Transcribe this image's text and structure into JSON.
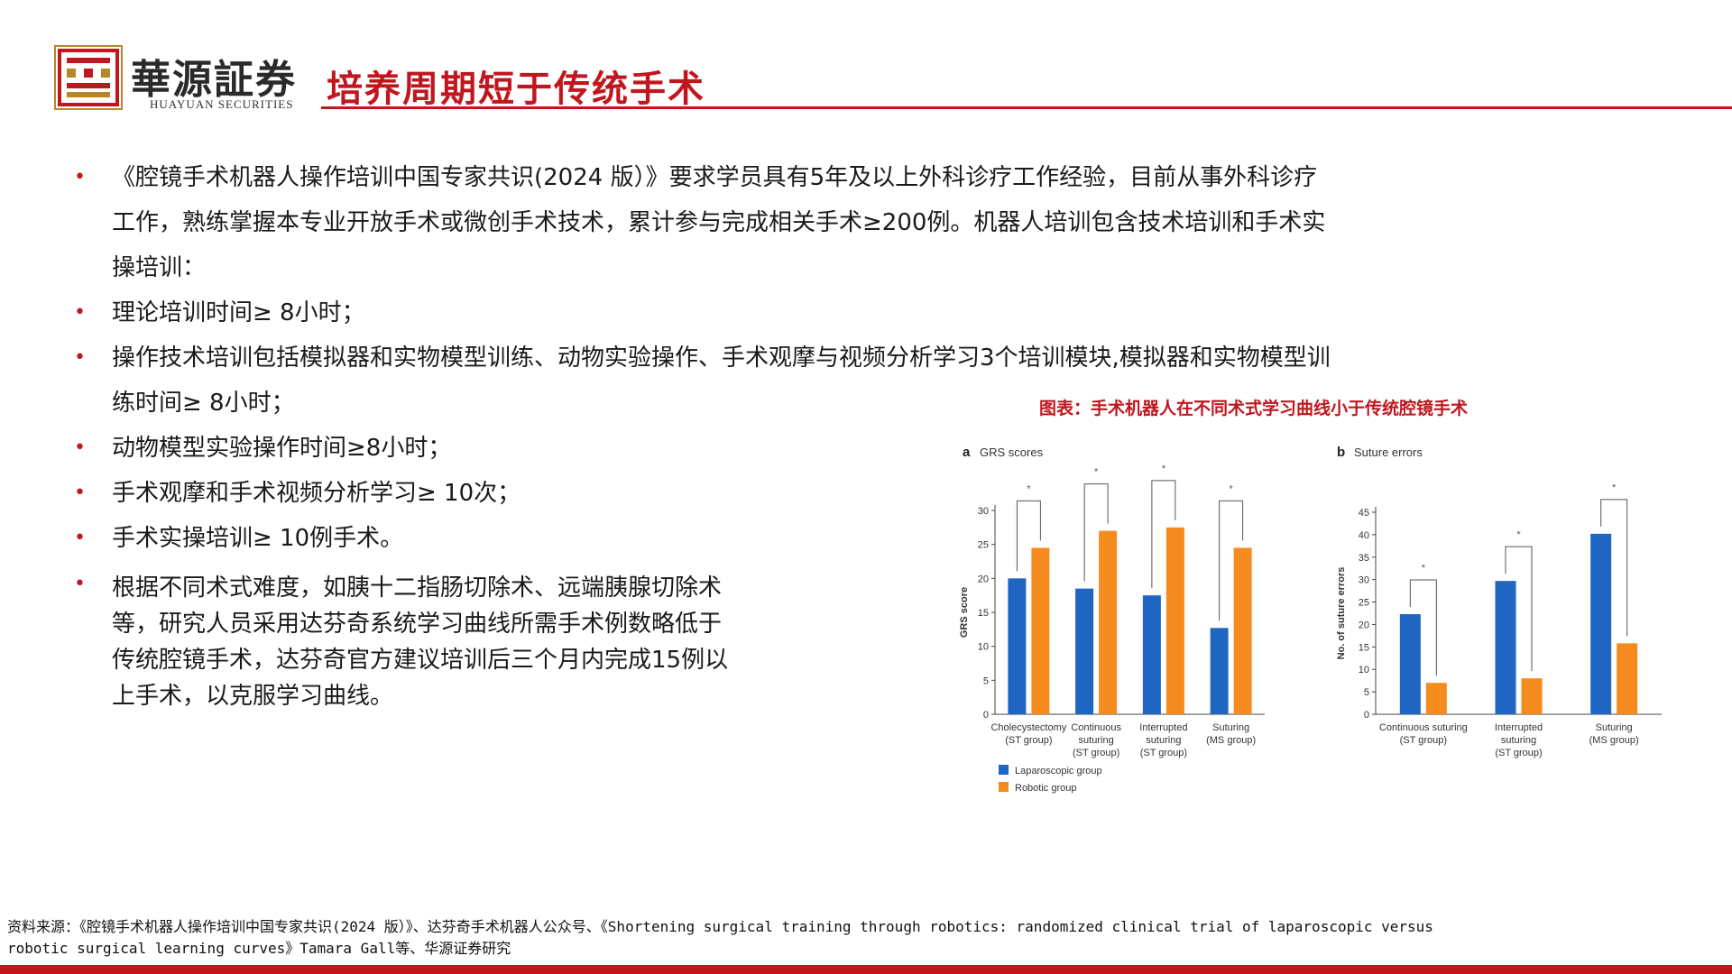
{
  "header": {
    "brand_cn": "華源証券",
    "brand_en": "HUAYUAN SECURITIES",
    "title": "培养周期短于传统手术"
  },
  "bullets": [
    {
      "line1": "《腔镜手术机器人操作培训中国专家共识(2024 版）》要求学员具有5年及以上外科诊疗工作经验，目前从事外科诊疗",
      "line2": "工作，熟练掌握本专业开放手术或微创手术技术，累计参与完成相关手术≥200例。机器人培训包含技术培训和手术实",
      "line3": "操培训："
    },
    {
      "line1": "理论培训时间≥ 8小时；"
    },
    {
      "line1": "操作技术培训包括模拟器和实物模型训练、动物实验操作、手术观摩与视频分析学习3个培训模块,模拟器和实物模型训",
      "line2": "练时间≥ 8小时；"
    },
    {
      "line1": "动物模型实验操作时间≥8小时；"
    },
    {
      "line1": "手术观摩和手术视频分析学习≥ 10次；"
    },
    {
      "line1": "手术实操培训≥ 10例手术。"
    },
    {
      "line1": "根据不同术式难度，如胰十二指肠切除术、远端胰腺切除术",
      "line2": "等，研究人员采用达芬奇系统学习曲线所需手术例数略低于",
      "line3": "传统腔镜手术，达芬奇官方建议培训后三个月内完成15例以",
      "line4": "上手术，以克服学习曲线。"
    }
  ],
  "figure_title": "图表：手术机器人在不同术式学习曲线小于传统腔镜手术",
  "source": {
    "line1": "资料来源：《腔镜手术机器人操作培训中国专家共识(2024 版）》、达芬奇手术机器人公众号、《Shortening surgical training through robotics: randomized clinical trial of laparoscopic versus",
    "line2": "robotic surgical learning curves》Tamara Gall等、华源证券研究"
  },
  "colors": {
    "accent": "#c0161e",
    "laparoscopic": "#1f66c2",
    "robotic": "#f58a1f"
  },
  "chart_data": [
    {
      "type": "bar",
      "panel": "a",
      "title": "GRS scores",
      "ylabel": "GRS score",
      "ylim": [
        0,
        30
      ],
      "yticks": [
        0,
        5,
        10,
        15,
        20,
        25,
        30
      ],
      "categories": [
        [
          "Cholecystectomy",
          "(ST group)"
        ],
        [
          "Continuous",
          "suturing",
          "(ST group)"
        ],
        [
          "Interrupted",
          "suturing",
          "(ST group)"
        ],
        [
          "Suturing",
          "(MS group)"
        ]
      ],
      "series": [
        {
          "name": "Laparoscopic group",
          "values": [
            20,
            18.5,
            17.5,
            12.7
          ]
        },
        {
          "name": "Robotic group",
          "values": [
            24.5,
            27,
            27.5,
            24.5
          ]
        }
      ],
      "significance": [
        "*",
        "*",
        "*",
        "*"
      ]
    },
    {
      "type": "bar",
      "panel": "b",
      "title": "Suture errors",
      "ylabel": "No. of suture errors",
      "ylim": [
        0,
        45
      ],
      "yticks": [
        0,
        5,
        10,
        15,
        20,
        25,
        30,
        35,
        40,
        45
      ],
      "categories": [
        [
          "Continuous suturing",
          "(ST group)"
        ],
        [
          "Interrupted",
          "suturing",
          "(ST group)"
        ],
        [
          "Suturing",
          "(MS group)"
        ]
      ],
      "series": [
        {
          "name": "Laparoscopic group",
          "values": [
            22.3,
            29.7,
            40.2
          ]
        },
        {
          "name": "Robotic group",
          "values": [
            7,
            8,
            15.8
          ]
        }
      ],
      "significance": [
        "*",
        "*",
        "*"
      ]
    }
  ],
  "legend": [
    "Laparoscopic group",
    "Robotic group"
  ]
}
